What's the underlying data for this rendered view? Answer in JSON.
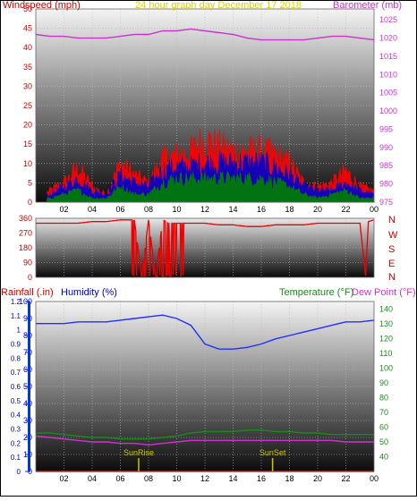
{
  "colors": {
    "wind_avg": "#0000cc",
    "wind_gust": "#ff0000",
    "wind_min": "#008000",
    "barometer": "#cc33cc",
    "direction": "#ee0000",
    "humidity": "#1f2fff",
    "temperature": "#1a8a1a",
    "dewpoint": "#cc33cc",
    "rain": "#ff0000",
    "title": "#e0d000",
    "sun_marker": "#c8c800"
  },
  "header": {
    "wind_label": "Windspeed (mph)",
    "title": "24 hour graph day   December 17 2018",
    "baro_label": "Barometer (mb)"
  },
  "panel2": {
    "compass": [
      "N",
      "W",
      "S",
      "E",
      "N"
    ]
  },
  "panel3_header": {
    "rain_label": "Rainfall (.in)",
    "humidity_label": "Humidity (%)",
    "temp_label": "Temperature (°F)",
    "dew_label": "Dew Point (°F)"
  },
  "annotations": {
    "sunrise": "SunRise",
    "sunset": "SunSet"
  },
  "chart_data": [
    {
      "type": "line",
      "title": "24 hour graph day   December 17 2018",
      "ylabel": "Windspeed (mph)",
      "y2label": "Barometer (mb)",
      "ylim": [
        0,
        50
      ],
      "y2lim": [
        975,
        1028
      ],
      "yticks": [
        0,
        5,
        10,
        15,
        20,
        25,
        30,
        35,
        40,
        45,
        50
      ],
      "y2ticks": [
        975,
        980,
        985,
        990,
        995,
        1000,
        1005,
        1010,
        1015,
        1020,
        1025
      ],
      "xticks": [
        "02",
        "04",
        "06",
        "08",
        "10",
        "12",
        "14",
        "16",
        "18",
        "20",
        "22",
        "00"
      ],
      "x_hours": [
        0,
        1,
        2,
        3,
        4,
        5,
        6,
        7,
        8,
        9,
        10,
        11,
        12,
        13,
        14,
        15,
        16,
        17,
        18,
        19,
        20,
        21,
        22,
        23,
        24
      ],
      "series": [
        {
          "values": [
            1,
            3,
            5,
            9,
            4,
            2,
            10,
            7,
            5,
            11,
            12,
            13,
            16,
            14,
            13,
            13,
            13,
            12,
            10,
            5,
            4,
            5,
            8,
            4,
            3
          ]
        },
        {
          "values": [
            0.5,
            2,
            4,
            6,
            3,
            2,
            7,
            5,
            4,
            8,
            9,
            9,
            10,
            10,
            10,
            10,
            10,
            9,
            7,
            4,
            3,
            3,
            5,
            3,
            2
          ]
        },
        {
          "values": [
            0,
            1,
            2,
            3,
            1,
            1,
            4,
            2,
            2,
            5,
            6,
            6,
            6,
            6,
            6,
            6,
            6,
            5,
            4,
            2,
            1,
            2,
            3,
            1,
            1
          ]
        },
        {
          "y_axis": "right",
          "values": [
            1021,
            1020.5,
            1020.5,
            1020,
            1020,
            1020,
            1020.5,
            1021,
            1021,
            1022,
            1022,
            1022.5,
            1022,
            1021.5,
            1021,
            1020,
            1019.5,
            1019.5,
            1019.5,
            1019.5,
            1020,
            1020.5,
            1020.5,
            1020,
            1019.5
          ]
        }
      ]
    },
    {
      "type": "line",
      "ylim": [
        0,
        360
      ],
      "yticks": [
        0,
        90,
        180,
        270,
        360
      ],
      "x_hours": [
        0,
        1,
        2,
        3,
        4,
        5,
        6,
        7,
        7.5,
        8,
        8.5,
        9,
        9.5,
        10,
        11,
        12,
        13,
        14,
        15,
        16,
        17,
        18,
        19,
        20,
        21,
        22,
        23,
        23.4,
        23.6,
        24
      ],
      "series": [
        {
          "values": [
            330,
            330,
            330,
            330,
            340,
            340,
            350,
            350,
            10,
            350,
            10,
            350,
            330,
            330,
            330,
            330,
            320,
            320,
            310,
            310,
            320,
            320,
            320,
            330,
            330,
            330,
            330,
            10,
            340,
            350
          ]
        }
      ]
    },
    {
      "type": "line",
      "ylabel": "Humidity (%)",
      "y2label": "Temperature (°F)",
      "ylim": [
        0,
        100
      ],
      "y2lim": [
        30,
        145
      ],
      "yticks": [
        0,
        10,
        20,
        30,
        40,
        50,
        60,
        70,
        80,
        90,
        100
      ],
      "y2ticks": [
        40,
        50,
        60,
        70,
        80,
        90,
        100,
        110,
        120,
        130,
        140
      ],
      "rain_ticks": [
        0,
        0.1,
        0.2,
        0.3,
        0.4,
        0.5,
        0.6,
        0.7,
        0.8,
        0.9,
        1,
        1.1,
        1.2
      ],
      "xticks": [
        "02",
        "04",
        "06",
        "08",
        "10",
        "12",
        "14",
        "16",
        "18",
        "20",
        "22",
        "00"
      ],
      "x_hours": [
        0,
        1,
        2,
        3,
        4,
        5,
        6,
        7,
        8,
        9,
        10,
        11,
        12,
        13,
        14,
        15,
        16,
        17,
        18,
        19,
        20,
        21,
        22,
        23,
        24
      ],
      "series": [
        {
          "values": [
            87,
            87,
            87,
            88,
            88,
            88,
            89,
            90,
            91,
            92,
            90,
            86,
            75,
            72,
            72,
            73,
            75,
            78,
            80,
            82,
            84,
            86,
            88,
            88,
            89
          ]
        },
        {
          "y_axis": "right",
          "values": [
            56,
            56,
            55,
            54,
            53,
            53,
            52,
            52,
            52,
            53,
            54,
            56,
            57,
            57,
            57,
            58,
            58,
            57,
            57,
            56,
            56,
            55,
            55,
            55,
            55
          ]
        },
        {
          "y_axis": "right",
          "values": [
            54,
            53,
            52,
            51,
            50,
            50,
            49,
            49,
            48,
            49,
            50,
            51,
            51,
            51,
            51,
            51,
            51,
            51,
            51,
            51,
            51,
            51,
            50,
            50,
            50
          ]
        },
        {
          "values": [
            0,
            0,
            0,
            0,
            0,
            0,
            0,
            0,
            0,
            0,
            0,
            0,
            0,
            0,
            0,
            0,
            0,
            0,
            0,
            0,
            0,
            0,
            0,
            0,
            0
          ]
        }
      ],
      "sunrise_hour": 7.3,
      "sunset_hour": 16.8
    }
  ]
}
